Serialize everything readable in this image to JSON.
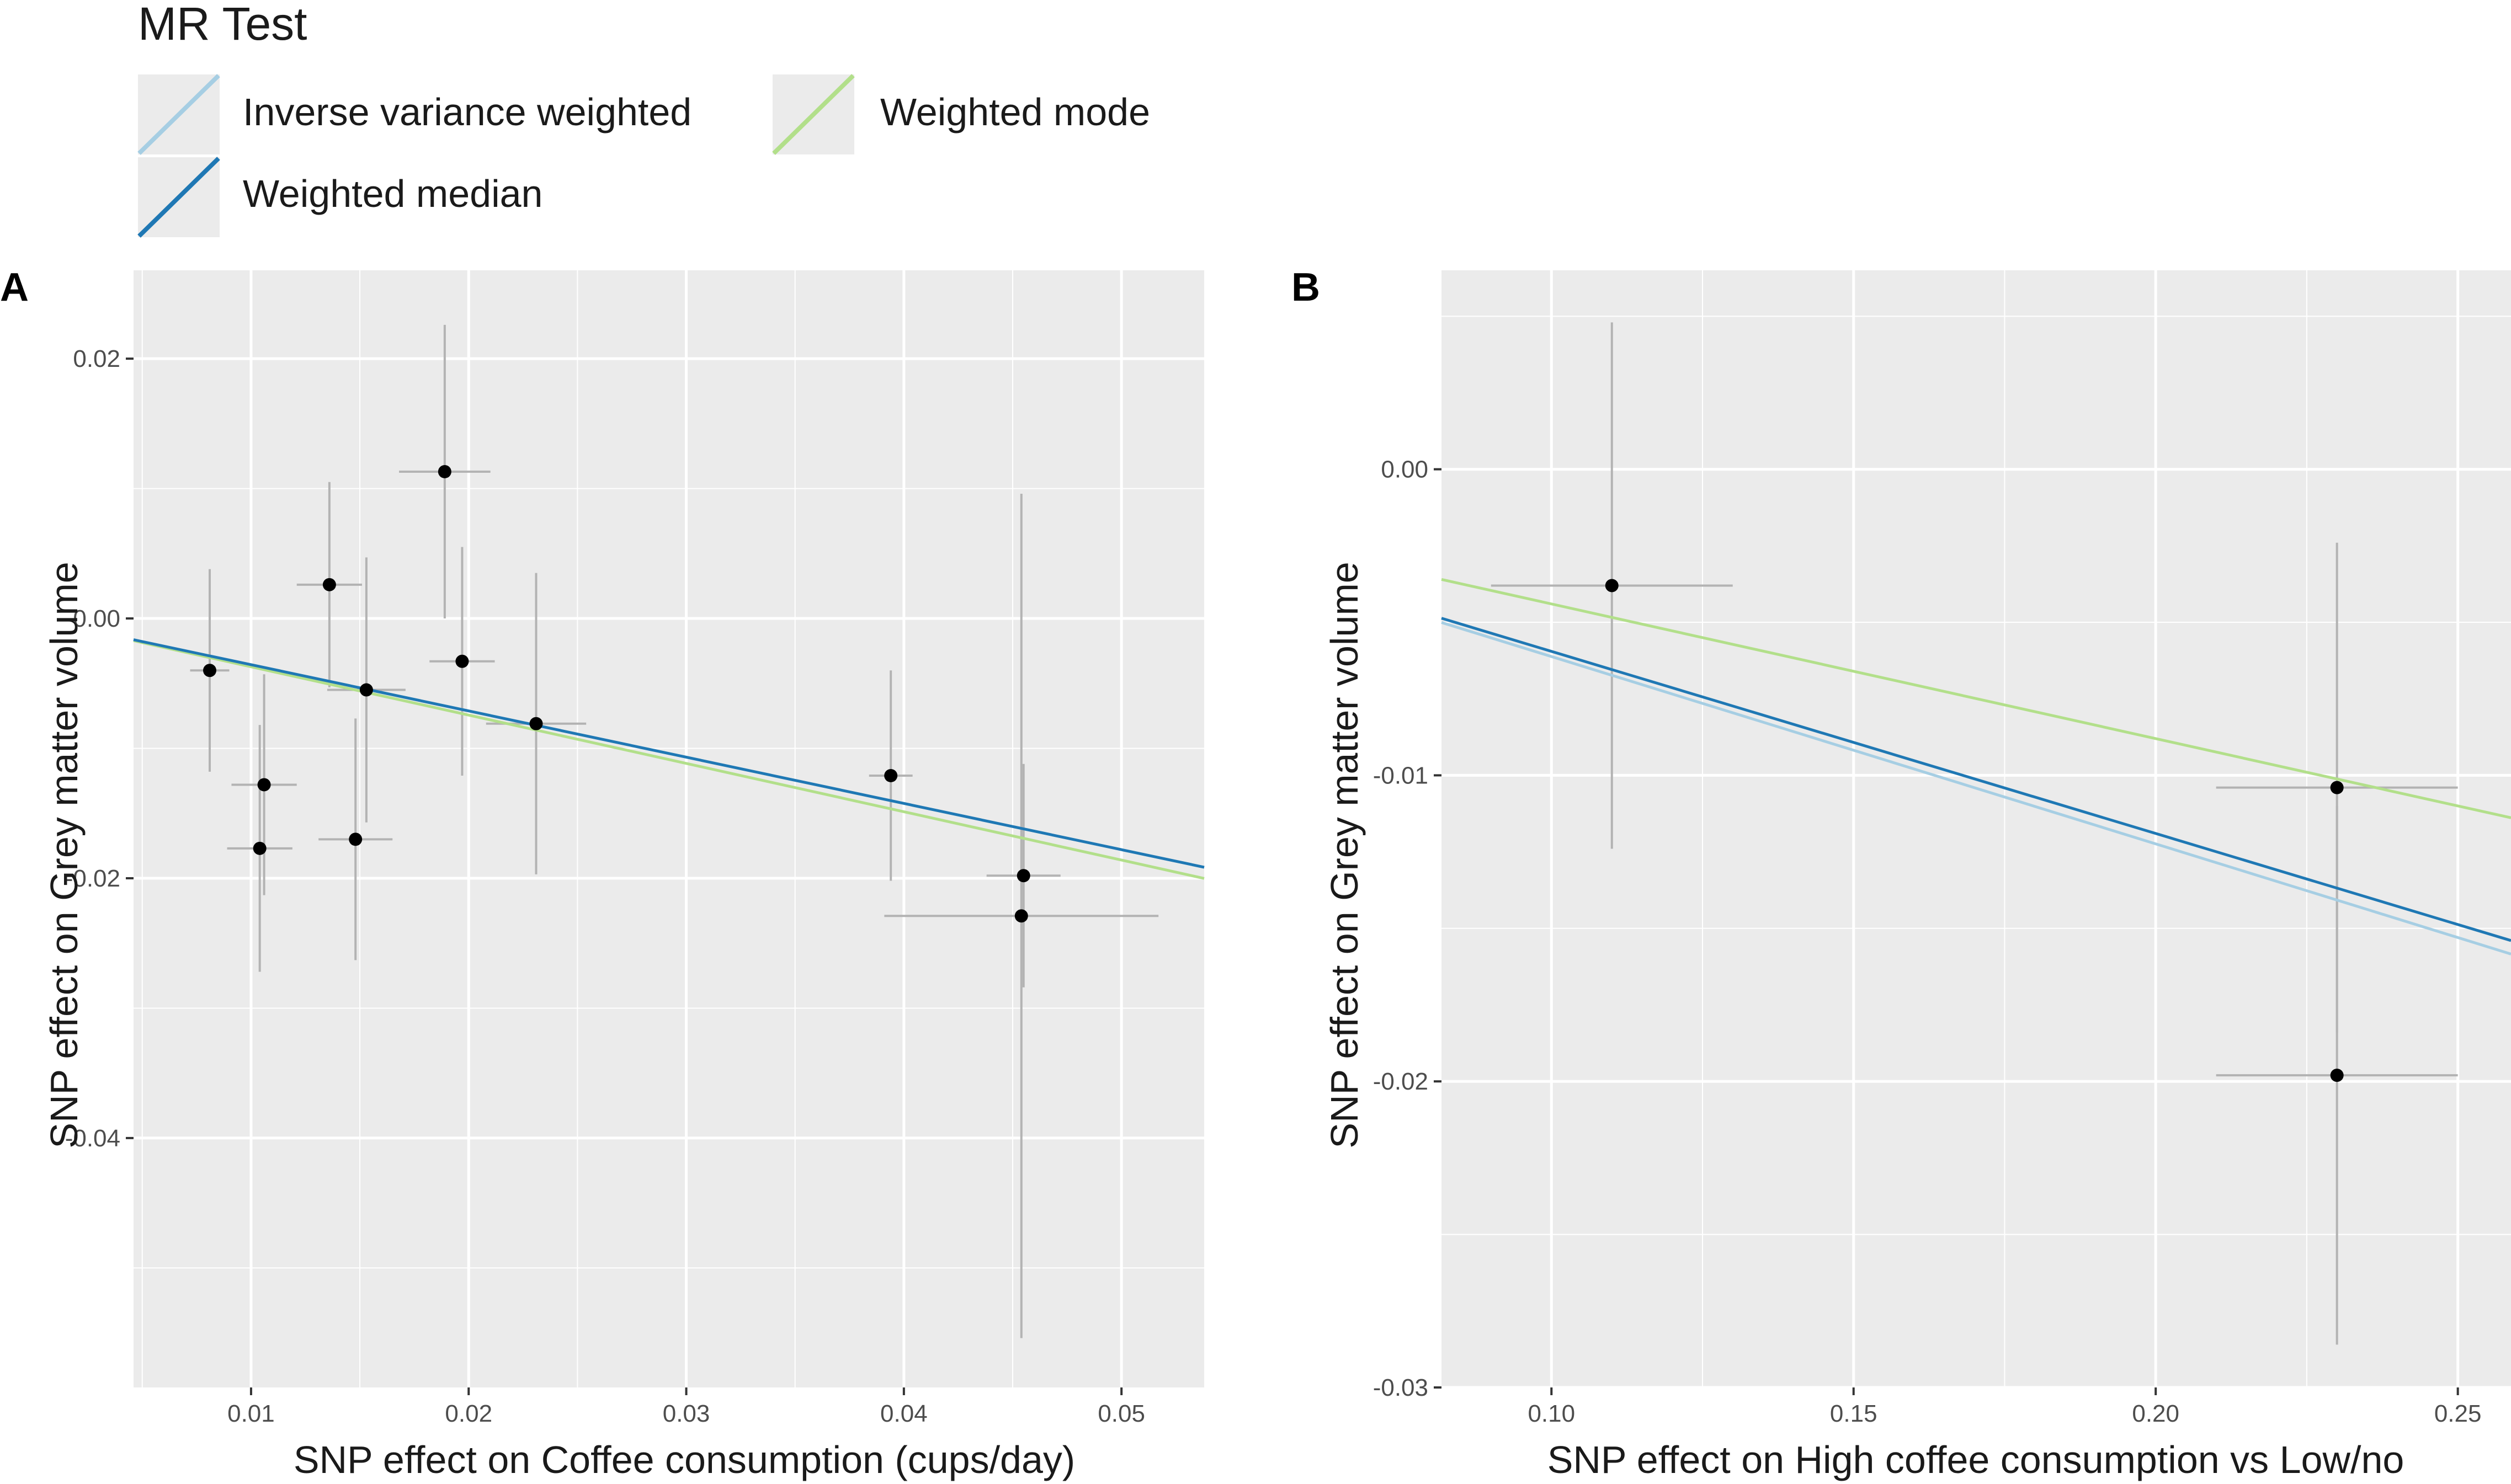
{
  "legend": {
    "title": "MR Test",
    "items": [
      {
        "label": "Inverse variance weighted",
        "color": "#a6cee3"
      },
      {
        "label": "Weighted median",
        "color": "#1f78b4"
      },
      {
        "label": "Weighted mode",
        "color": "#b2df8a"
      }
    ]
  },
  "chart_data": [
    {
      "panel": "A",
      "type": "scatter",
      "xlabel": "SNP effect on Coffee consumption (cups/day)",
      "ylabel": "SNP effect on Grey matter volume",
      "xlim": [
        0.0046,
        0.0538
      ],
      "ylim": [
        -0.0592,
        0.0268
      ],
      "x_ticks": [
        0.01,
        0.02,
        0.03,
        0.04,
        0.05
      ],
      "x_tick_labels": [
        "0.01",
        "0.02",
        "0.03",
        "0.04",
        "0.05"
      ],
      "y_ticks": [
        0.02,
        0.0,
        -0.02,
        -0.04
      ],
      "y_tick_labels": [
        "0.02",
        "0.00",
        "-0.02",
        "-0.04"
      ],
      "points": [
        {
          "x": 0.0081,
          "y": -0.004,
          "xerr": 0.0009,
          "yerr": 0.0078
        },
        {
          "x": 0.0104,
          "y": -0.0177,
          "xerr": 0.0015,
          "yerr": 0.0095
        },
        {
          "x": 0.0106,
          "y": -0.0128,
          "xerr": 0.0015,
          "yerr": 0.0085
        },
        {
          "x": 0.0136,
          "y": 0.0026,
          "xerr": 0.0015,
          "yerr": 0.0079
        },
        {
          "x": 0.0148,
          "y": -0.017,
          "xerr": 0.0017,
          "yerr": 0.0093
        },
        {
          "x": 0.0153,
          "y": -0.0055,
          "xerr": 0.0018,
          "yerr": 0.0102
        },
        {
          "x": 0.0189,
          "y": 0.0113,
          "xerr": 0.0021,
          "yerr": 0.0113
        },
        {
          "x": 0.0197,
          "y": -0.0033,
          "xerr": 0.0015,
          "yerr": 0.0088
        },
        {
          "x": 0.0231,
          "y": -0.0081,
          "xerr": 0.0023,
          "yerr": 0.0116
        },
        {
          "x": 0.0394,
          "y": -0.0121,
          "xerr": 0.001,
          "yerr": 0.0081
        },
        {
          "x": 0.0455,
          "y": -0.0198,
          "xerr": 0.0017,
          "yerr": 0.0086
        },
        {
          "x": 0.0454,
          "y": -0.0229,
          "xerr": 0.0063,
          "yerr": 0.0325
        }
      ],
      "series": [
        {
          "name": "Inverse variance weighted",
          "intercept": 0,
          "slope": -0.356
        },
        {
          "name": "Weighted mode",
          "intercept": 0,
          "slope": -0.372
        },
        {
          "name": "Weighted median",
          "intercept": 0,
          "slope": -0.356
        }
      ]
    },
    {
      "panel": "B",
      "type": "scatter",
      "xlabel": "SNP effect on High coffee consumption vs Low/no",
      "ylabel": "SNP effect on Grey matter volume",
      "xlim": [
        0.0818,
        0.2588
      ],
      "ylim": [
        -0.03,
        0.0065
      ],
      "x_ticks": [
        0.1,
        0.15,
        0.2,
        0.25
      ],
      "x_tick_labels": [
        "0.10",
        "0.15",
        "0.20",
        "0.25"
      ],
      "y_ticks": [
        0.0,
        -0.01,
        -0.02,
        -0.03
      ],
      "y_tick_labels": [
        "0.00",
        "-0.01",
        "-0.02",
        "-0.03"
      ],
      "points": [
        {
          "x": 0.11,
          "y": -0.0038,
          "xerr": 0.02,
          "yerr": 0.0086
        },
        {
          "x": 0.23,
          "y": -0.0104,
          "xerr": 0.02,
          "yerr": 0.008
        },
        {
          "x": 0.23,
          "y": -0.0198,
          "xerr": 0.02,
          "yerr": 0.0088
        }
      ],
      "series": [
        {
          "name": "Inverse variance weighted",
          "intercept": 0,
          "slope": -0.0612
        },
        {
          "name": "Weighted mode",
          "intercept": 0,
          "slope": -0.044
        },
        {
          "name": "Weighted median",
          "intercept": 0,
          "slope": -0.0595
        }
      ]
    }
  ]
}
